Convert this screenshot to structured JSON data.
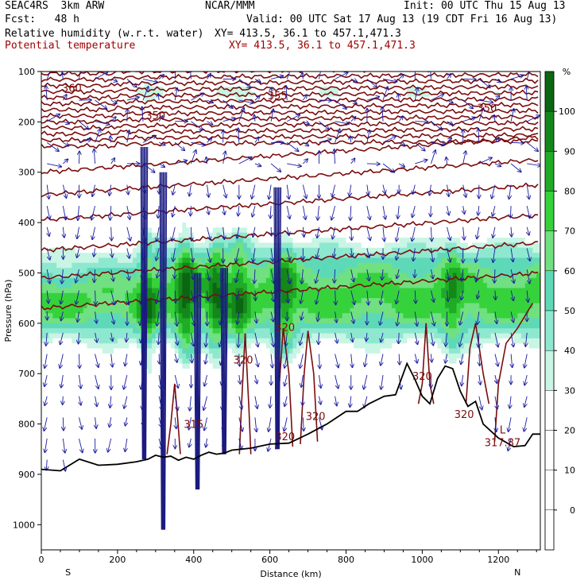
{
  "header": {
    "line1_left": "SEAC4RS  3km ARW",
    "line1_center": "NCAR/MMM",
    "line1_right": "Init: 00 UTC Thu 15 Aug 13",
    "line2_left": "Fcst:   48 h",
    "line2_right": "Valid: 00 UTC Sat 17 Aug 13 (19 CDT Fri 16 Aug 13)",
    "line3_left": "Relative humidity (w.r.t. water)",
    "line3_right": "XY= 413.5, 36.1 to 457.1,471.3",
    "line4_left": "Potential temperature",
    "line4_right": "XY= 413.5, 36.1 to 457.1,471.3"
  },
  "chart_data": {
    "type": "heatmap",
    "title": "Relative humidity (w.r.t. water) / Potential temperature cross-section",
    "xlabel": "Distance (km)",
    "ylabel": "Pressure (hPa)",
    "xlim": [
      0,
      1310
    ],
    "ylim": [
      1050,
      100
    ],
    "x_ticks": [
      0,
      200,
      400,
      600,
      800,
      1000,
      1200
    ],
    "y_ticks": [
      100,
      200,
      300,
      400,
      500,
      600,
      700,
      800,
      900,
      1000
    ],
    "x_end_labels": {
      "left": "S",
      "right": "N"
    },
    "colorbar": {
      "unit": "%",
      "ticks": [
        0,
        10,
        20,
        30,
        40,
        50,
        60,
        70,
        80,
        90,
        100
      ],
      "colors": [
        "#ffffff",
        "#ffffff",
        "#ffffff",
        "#ffffff",
        "#c8f5e4",
        "#8ee8d0",
        "#5ed9b8",
        "#70e080",
        "#36d23c",
        "#1fab26",
        "#14871a",
        "#0a6612"
      ]
    },
    "theta_contour_labels": [
      {
        "text": "360",
        "x": 80,
        "p": 140
      },
      {
        "text": "355",
        "x": 620,
        "p": 155
      },
      {
        "text": "350",
        "x": 300,
        "p": 195
      },
      {
        "text": "350",
        "x": 1170,
        "p": 180
      },
      {
        "text": "320",
        "x": 640,
        "p": 615
      },
      {
        "text": "320",
        "x": 530,
        "p": 680
      },
      {
        "text": "320",
        "x": 1000,
        "p": 712
      },
      {
        "text": "320",
        "x": 720,
        "p": 792
      },
      {
        "text": "320",
        "x": 1110,
        "p": 788
      },
      {
        "text": "315",
        "x": 400,
        "p": 808
      },
      {
        "text": "320",
        "x": 640,
        "p": 832
      }
    ],
    "min_label": {
      "text": "L",
      "value": "317.87",
      "x": 1190,
      "p": 838
    },
    "terrain_surface": {
      "x": [
        0,
        50,
        100,
        150,
        200,
        250,
        280,
        300,
        320,
        340,
        360,
        380,
        400,
        420,
        440,
        460,
        480,
        500,
        550,
        600,
        650,
        700,
        750,
        800,
        830,
        860,
        900,
        930,
        960,
        980,
        1000,
        1020,
        1040,
        1060,
        1080,
        1100,
        1120,
        1140,
        1160,
        1200,
        1240,
        1270,
        1290,
        1310
      ],
      "p": [
        890,
        893,
        870,
        882,
        880,
        875,
        870,
        862,
        866,
        864,
        872,
        866,
        870,
        862,
        856,
        860,
        858,
        852,
        848,
        840,
        838,
        820,
        800,
        775,
        775,
        760,
        745,
        742,
        680,
        710,
        745,
        760,
        710,
        685,
        690,
        735,
        765,
        755,
        800,
        828,
        845,
        843,
        820,
        820
      ]
    }
  }
}
